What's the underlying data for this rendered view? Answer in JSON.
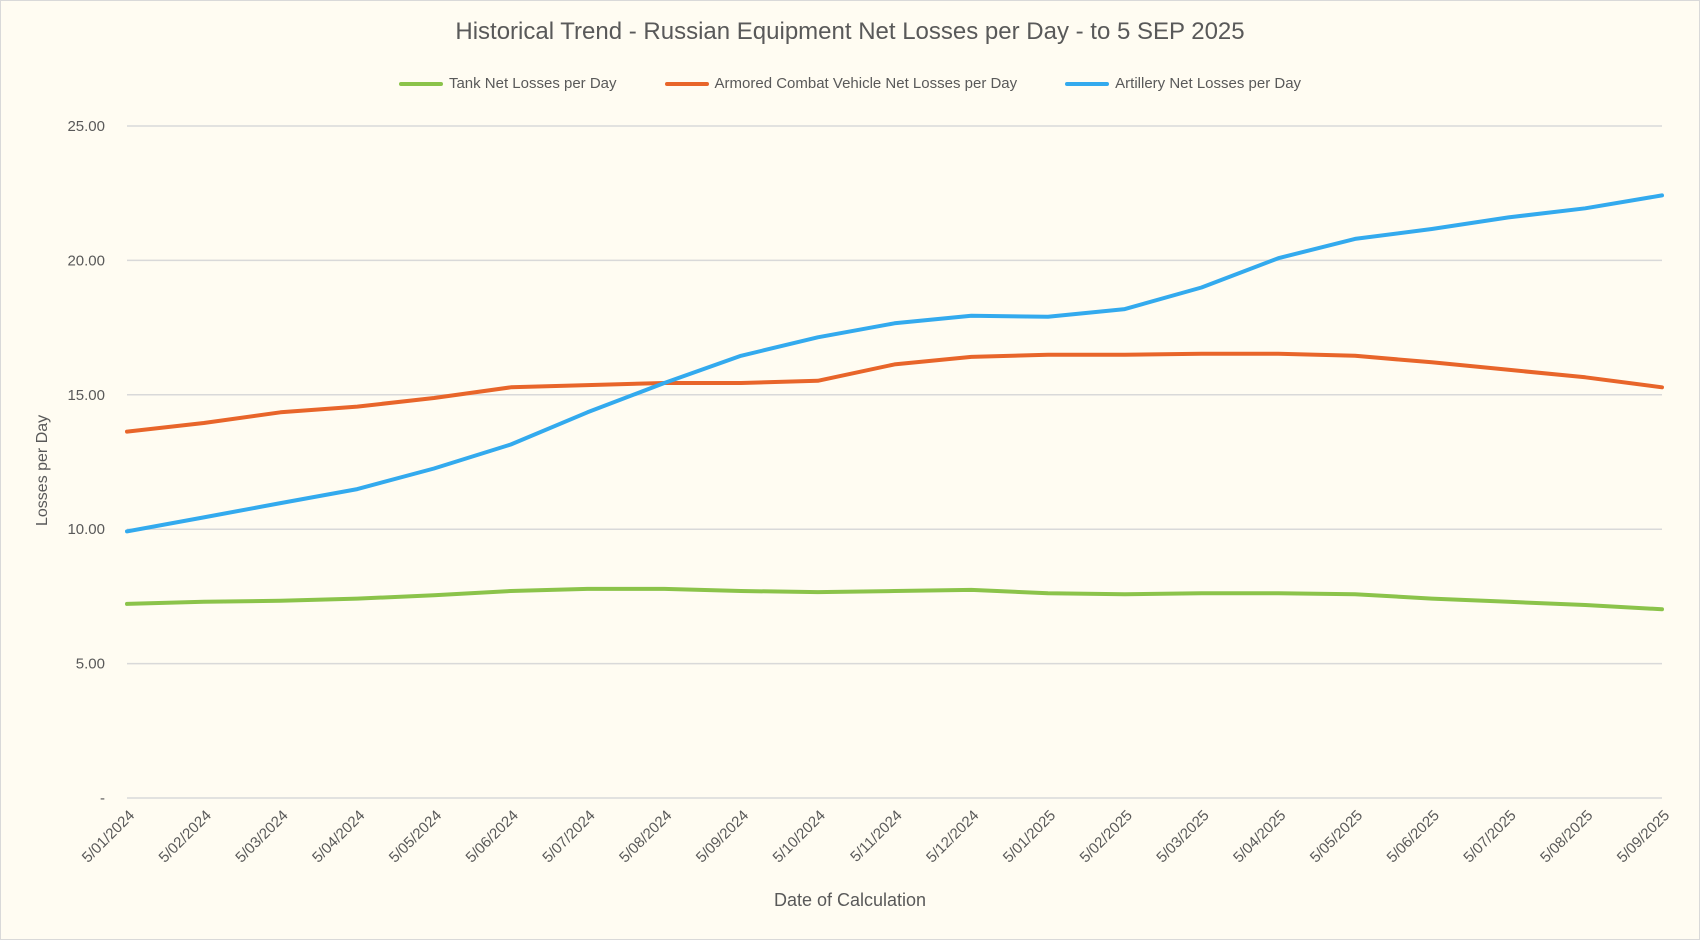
{
  "chart_data": {
    "type": "line",
    "title": "Historical Trend - Russian Equipment Net Losses per Day - to 5 SEP 2025",
    "xlabel": "Date of Calculation",
    "ylabel": "Losses per Day",
    "ylim": [
      0,
      25
    ],
    "yticks": [
      25,
      20,
      15,
      10,
      5,
      0
    ],
    "ytick_labels": [
      "25.00",
      "20.00",
      "15.00",
      "10.00",
      "5.00",
      "-"
    ],
    "grid": true,
    "legend": "top",
    "x": [
      "5/01/2024",
      "5/02/2024",
      "5/03/2024",
      "5/04/2024",
      "5/05/2024",
      "5/06/2024",
      "5/07/2024",
      "5/08/2024",
      "5/09/2024",
      "5/10/2024",
      "5/11/2024",
      "5/12/2024",
      "5/01/2025",
      "5/02/2025",
      "5/03/2025",
      "5/04/2025",
      "5/05/2025",
      "5/06/2025",
      "5/07/2025",
      "5/08/2025",
      "5/09/2025"
    ],
    "series": [
      {
        "name": "Tank Net Losses per Day",
        "color": "#8bc34a",
        "values": [
          7.22,
          7.3,
          7.34,
          7.42,
          7.54,
          7.7,
          7.78,
          7.78,
          7.7,
          7.66,
          7.7,
          7.74,
          7.62,
          7.58,
          7.62,
          7.62,
          7.58,
          7.42,
          7.3,
          7.18,
          7.02
        ]
      },
      {
        "name": "Armored Combat Vehicle Net Losses per Day",
        "color": "#e8652a",
        "values": [
          13.63,
          13.95,
          14.35,
          14.56,
          14.88,
          15.28,
          15.36,
          15.44,
          15.44,
          15.52,
          16.13,
          16.41,
          16.49,
          16.49,
          16.53,
          16.53,
          16.45,
          16.21,
          15.93,
          15.65,
          15.28
        ]
      },
      {
        "name": "Artillery Net Losses per Day",
        "color": "#33aaee",
        "values": [
          9.92,
          10.44,
          10.97,
          11.49,
          12.26,
          13.15,
          14.35,
          15.44,
          16.45,
          17.14,
          17.66,
          17.94,
          17.9,
          18.19,
          18.99,
          20.08,
          20.8,
          21.17,
          21.6,
          21.94,
          22.42
        ]
      }
    ]
  }
}
